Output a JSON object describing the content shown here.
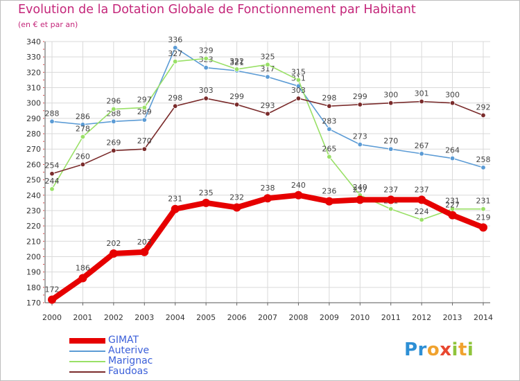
{
  "header": {
    "title": "Evolution de la Dotation Globale de Fonctionnement par Habitant",
    "subtitle": "(en € et par an)"
  },
  "logo": {
    "text": "Proxiti"
  },
  "colors": {
    "title": "#c4267a",
    "axis_text": "#333333",
    "grid": "#d9d9d9",
    "legend_text": "#3b5fd9",
    "tick_marks": "#d24a4a"
  },
  "chart_data": {
    "type": "line",
    "x": [
      "2000",
      "2001",
      "2002",
      "2003",
      "2004",
      "2005",
      "2006",
      "2007",
      "2008",
      "2009",
      "2010",
      "2011",
      "2012",
      "2013",
      "2014"
    ],
    "ylim": [
      170,
      340
    ],
    "yticks": [
      170,
      180,
      190,
      200,
      210,
      220,
      230,
      240,
      250,
      260,
      270,
      280,
      290,
      300,
      310,
      320,
      330,
      340
    ],
    "grid": true,
    "legend_position": "bottom-left",
    "series": [
      {
        "name": "GIMAT",
        "color": "#e60000",
        "values": [
          172,
          186,
          202,
          203,
          231,
          235,
          232,
          238,
          240,
          236,
          237,
          237,
          237,
          227,
          219
        ]
      },
      {
        "name": "Auterive",
        "color": "#5b9bd5",
        "values": [
          288,
          286,
          288,
          289,
          336,
          323,
          321,
          317,
          311,
          283,
          273,
          270,
          267,
          264,
          258
        ]
      },
      {
        "name": "Marignac",
        "color": "#99e066",
        "values": [
          244,
          278,
          296,
          297,
          327,
          329,
          322,
          325,
          315,
          265,
          240,
          231,
          224,
          231,
          231
        ]
      },
      {
        "name": "Faudoas",
        "color": "#7a2b2b",
        "values": [
          254,
          260,
          269,
          270,
          298,
          303,
          299,
          293,
          303,
          298,
          299,
          300,
          301,
          300,
          292
        ]
      }
    ]
  }
}
